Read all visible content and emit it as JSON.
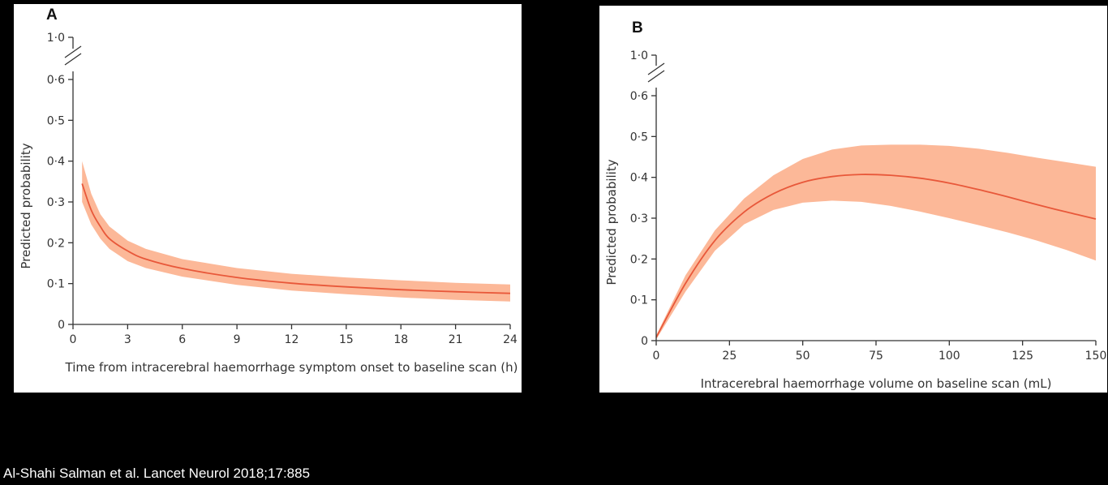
{
  "citation": "Al-Shahi Salman et al. Lancet Neurol 2018;17:885",
  "colors": {
    "line": "#e8583a",
    "band": "#fcb898",
    "axis": "#333333",
    "background": "#000000",
    "panel": "#ffffff"
  },
  "chart_data": [
    {
      "type": "line",
      "panel_label": "A",
      "title": "",
      "xlabel": "Time from intracerebral haemorrhage symptom onset to baseline scan (h)",
      "ylabel": "Predicted probability",
      "xlim": [
        0,
        24
      ],
      "ylim": [
        0,
        0.6
      ],
      "axis_break_top_label": "1·0",
      "xticks": [
        0,
        3,
        6,
        9,
        12,
        15,
        18,
        21,
        24
      ],
      "xtick_labels": [
        "0",
        "3",
        "6",
        "9",
        "12",
        "15",
        "18",
        "21",
        "24"
      ],
      "yticks": [
        0,
        0.1,
        0.2,
        0.3,
        0.4,
        0.5,
        0.6
      ],
      "ytick_labels": [
        "0",
        "0·1",
        "0·2",
        "0·3",
        "0·4",
        "0·5",
        "0·6"
      ],
      "series": [
        {
          "name": "Predicted probability",
          "x": [
            0.5,
            1,
            1.5,
            2,
            3,
            4,
            6,
            9,
            12,
            15,
            18,
            21,
            24
          ],
          "y": [
            0.345,
            0.28,
            0.24,
            0.21,
            0.18,
            0.16,
            0.137,
            0.115,
            0.101,
            0.092,
            0.085,
            0.08,
            0.076
          ],
          "lower": [
            0.3,
            0.245,
            0.21,
            0.185,
            0.155,
            0.138,
            0.117,
            0.097,
            0.083,
            0.074,
            0.066,
            0.06,
            0.056
          ],
          "upper": [
            0.4,
            0.32,
            0.27,
            0.24,
            0.205,
            0.185,
            0.16,
            0.138,
            0.124,
            0.115,
            0.108,
            0.102,
            0.098
          ]
        }
      ]
    },
    {
      "type": "line",
      "panel_label": "B",
      "title": "",
      "xlabel": "Intracerebral haemorrhage volume on baseline scan (mL)",
      "ylabel": "Predicted probability",
      "xlim": [
        0,
        150
      ],
      "ylim": [
        0,
        0.6
      ],
      "axis_break_top_label": "1·0",
      "xticks": [
        0,
        25,
        50,
        75,
        100,
        125,
        150
      ],
      "xtick_labels": [
        "0",
        "25",
        "50",
        "75",
        "100",
        "125",
        "150"
      ],
      "yticks": [
        0,
        0.1,
        0.2,
        0.3,
        0.4,
        0.5,
        0.6
      ],
      "ytick_labels": [
        "0",
        "0·1",
        "0·2",
        "0·3",
        "0·4",
        "0·5",
        "0·6"
      ],
      "series": [
        {
          "name": "Predicted probability",
          "x": [
            0,
            10,
            20,
            30,
            40,
            50,
            60,
            70,
            80,
            90,
            100,
            110,
            120,
            130,
            140,
            150
          ],
          "y": [
            0.008,
            0.14,
            0.245,
            0.315,
            0.36,
            0.388,
            0.402,
            0.407,
            0.405,
            0.398,
            0.386,
            0.37,
            0.352,
            0.333,
            0.315,
            0.298
          ],
          "lower": [
            0.003,
            0.12,
            0.22,
            0.285,
            0.32,
            0.338,
            0.343,
            0.34,
            0.33,
            0.316,
            0.3,
            0.283,
            0.265,
            0.245,
            0.222,
            0.196
          ],
          "upper": [
            0.013,
            0.16,
            0.27,
            0.348,
            0.405,
            0.445,
            0.468,
            0.478,
            0.48,
            0.48,
            0.477,
            0.47,
            0.46,
            0.448,
            0.437,
            0.426
          ]
        }
      ]
    }
  ]
}
